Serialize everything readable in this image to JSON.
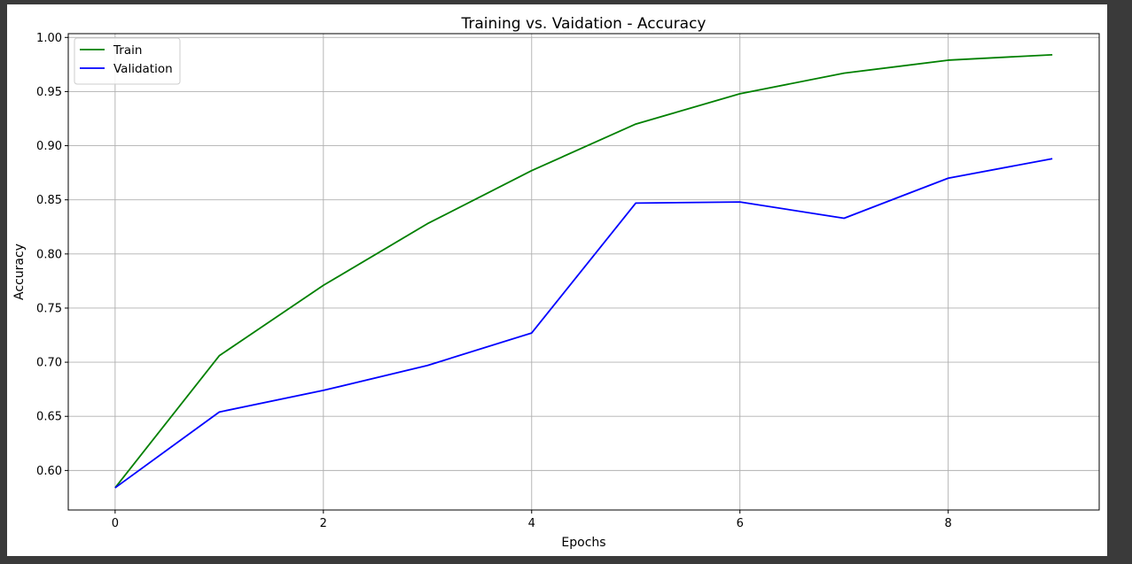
{
  "chart_data": {
    "type": "line",
    "title": "Training vs. Vaidation - Accuracy",
    "xlabel": "Epochs",
    "ylabel": "Accuracy",
    "x": [
      0,
      1,
      2,
      3,
      4,
      5,
      6,
      7,
      8,
      9
    ],
    "xticks": [
      0,
      2,
      4,
      6,
      8
    ],
    "yticks": [
      0.6,
      0.65,
      0.7,
      0.75,
      0.8,
      0.85,
      0.9,
      0.95,
      1.0
    ],
    "xlim": [
      -0.45,
      9.45
    ],
    "ylim": [
      0.5635,
      1.0035
    ],
    "grid": true,
    "legend_position": "upper-left",
    "series": [
      {
        "name": "Train",
        "color": "#008000",
        "values": [
          0.584,
          0.706,
          0.771,
          0.828,
          0.877,
          0.92,
          0.948,
          0.967,
          0.979,
          0.984
        ]
      },
      {
        "name": "Validation",
        "color": "#0000ff",
        "values": [
          0.584,
          0.654,
          0.674,
          0.697,
          0.727,
          0.847,
          0.848,
          0.833,
          0.87,
          0.888
        ]
      }
    ]
  }
}
